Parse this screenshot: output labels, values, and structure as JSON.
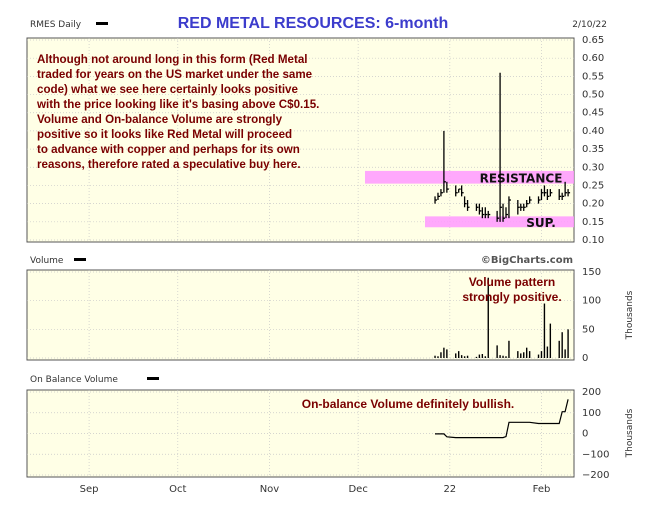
{
  "header": {
    "ticker_label": "RMES Daily",
    "title": "RED METAL RESOURCES: 6-month",
    "date": "2/10/22"
  },
  "colors": {
    "title": "#3c3ccc",
    "panel_bg": "#ffffe6",
    "band": "#ff99ff",
    "annotation": "#7a0000",
    "price_line": "#000000"
  },
  "chart_data": [
    {
      "type": "line",
      "name": "price-panel",
      "x": [
        "2021-12-27",
        "2021-12-28",
        "2021-12-29",
        "2021-12-30",
        "2021-12-31",
        "2022-01-03",
        "2022-01-04",
        "2022-01-05",
        "2022-01-06",
        "2022-01-07",
        "2022-01-10",
        "2022-01-11",
        "2022-01-12",
        "2022-01-13",
        "2022-01-14",
        "2022-01-17",
        "2022-01-18",
        "2022-01-19",
        "2022-01-20",
        "2022-01-21",
        "2022-01-24",
        "2022-01-25",
        "2022-01-26",
        "2022-01-27",
        "2022-01-28",
        "2022-01-31",
        "2022-02-01",
        "2022-02-02",
        "2022-02-03",
        "2022-02-04",
        "2022-02-07",
        "2022-02-08",
        "2022-02-09",
        "2022-02-10"
      ],
      "high": [
        0.22,
        0.23,
        0.24,
        0.4,
        0.26,
        0.25,
        0.24,
        0.25,
        0.22,
        0.21,
        0.2,
        0.2,
        0.19,
        0.19,
        0.18,
        0.18,
        0.56,
        0.2,
        0.19,
        0.22,
        0.21,
        0.2,
        0.2,
        0.21,
        0.22,
        0.22,
        0.24,
        0.25,
        0.24,
        0.24,
        0.24,
        0.23,
        0.26,
        0.24
      ],
      "low": [
        0.2,
        0.21,
        0.22,
        0.23,
        0.23,
        0.22,
        0.23,
        0.22,
        0.19,
        0.18,
        0.18,
        0.17,
        0.16,
        0.16,
        0.16,
        0.15,
        0.15,
        0.15,
        0.16,
        0.16,
        0.17,
        0.18,
        0.18,
        0.19,
        0.2,
        0.2,
        0.21,
        0.22,
        0.21,
        0.22,
        0.21,
        0.21,
        0.22,
        0.22
      ],
      "close": [
        0.21,
        0.22,
        0.23,
        0.26,
        0.24,
        0.23,
        0.24,
        0.23,
        0.2,
        0.19,
        0.19,
        0.18,
        0.17,
        0.17,
        0.17,
        0.16,
        0.19,
        0.16,
        0.17,
        0.21,
        0.19,
        0.19,
        0.19,
        0.2,
        0.21,
        0.21,
        0.23,
        0.23,
        0.22,
        0.23,
        0.22,
        0.22,
        0.23,
        0.23
      ],
      "ylim": [
        0.1,
        0.65
      ],
      "yticks": [
        "0.65",
        "0.60",
        "0.55",
        "0.50",
        "0.45",
        "0.40",
        "0.35",
        "0.30",
        "0.25",
        "0.20",
        "0.15",
        "0.10"
      ],
      "xticks": [
        "Sep",
        "Oct",
        "Nov",
        "Dec",
        "22",
        "Feb"
      ],
      "bands": [
        {
          "label": "RESISTANCE",
          "from": 0.255,
          "to": 0.29
        },
        {
          "label": "SUP.",
          "from": 0.135,
          "to": 0.165
        }
      ],
      "annotation": [
        "Although not around long in this form (Red Metal",
        "traded for years on the US market under the same",
        "code) what we see here certainly looks positive",
        "with the price looking like it's basing above C$0.15.",
        "Volume and On-balance Volume are strongly",
        "positive so it looks like Red Metal will proceed",
        "to advance with copper and perhaps for its own",
        "reasons, therefore rated a speculative buy here."
      ],
      "grid": true
    },
    {
      "type": "bar",
      "name": "volume-panel",
      "title": "Volume",
      "credit": "©BigCharts.com",
      "x": [
        "2021-12-27",
        "2021-12-28",
        "2021-12-29",
        "2021-12-30",
        "2021-12-31",
        "2022-01-03",
        "2022-01-04",
        "2022-01-05",
        "2022-01-06",
        "2022-01-07",
        "2022-01-10",
        "2022-01-11",
        "2022-01-12",
        "2022-01-13",
        "2022-01-14",
        "2022-01-17",
        "2022-01-18",
        "2022-01-19",
        "2022-01-20",
        "2022-01-21",
        "2022-01-24",
        "2022-01-25",
        "2022-01-26",
        "2022-01-27",
        "2022-01-28",
        "2022-01-31",
        "2022-02-01",
        "2022-02-02",
        "2022-02-03",
        "2022-02-04",
        "2022-02-07",
        "2022-02-08",
        "2022-02-09",
        "2022-02-10"
      ],
      "values": [
        4,
        3,
        10,
        18,
        15,
        8,
        12,
        5,
        3,
        4,
        2,
        6,
        7,
        3,
        140,
        22,
        5,
        4,
        3,
        30,
        12,
        8,
        10,
        18,
        12,
        6,
        12,
        95,
        20,
        60,
        30,
        45,
        15,
        50
      ],
      "ylim": [
        0,
        150
      ],
      "yticks": [
        "150",
        "100",
        "50",
        "0"
      ],
      "ylabel": "Thousands",
      "annotation": [
        "Volume pattern",
        "strongly positive."
      ],
      "grid": true
    },
    {
      "type": "line",
      "name": "obv-panel",
      "title": "On Balance Volume",
      "x": [
        "2021-12-27",
        "2021-12-28",
        "2021-12-29",
        "2021-12-30",
        "2021-12-31",
        "2022-01-03",
        "2022-01-04",
        "2022-01-05",
        "2022-01-06",
        "2022-01-07",
        "2022-01-10",
        "2022-01-11",
        "2022-01-12",
        "2022-01-13",
        "2022-01-14",
        "2022-01-17",
        "2022-01-18",
        "2022-01-19",
        "2022-01-20",
        "2022-01-21",
        "2022-01-24",
        "2022-01-25",
        "2022-01-26",
        "2022-01-27",
        "2022-01-28",
        "2022-01-31",
        "2022-02-01",
        "2022-02-02",
        "2022-02-03",
        "2022-02-04",
        "2022-02-07",
        "2022-02-08",
        "2022-02-09",
        "2022-02-10"
      ],
      "values": [
        -2,
        -2,
        -2,
        -2,
        -16,
        -20,
        -20,
        -20,
        -20,
        -20,
        -20,
        -20,
        -20,
        -20,
        -20,
        -20,
        -20,
        -20,
        -15,
        54,
        54,
        54,
        54,
        54,
        54,
        48,
        48,
        48,
        48,
        48,
        48,
        105,
        105,
        165
      ],
      "ylim": [
        -200,
        200
      ],
      "yticks": [
        "200",
        "100",
        "0",
        "−100",
        "−200"
      ],
      "ylabel": "Thousands",
      "annotation": [
        "On-balance Volume definitely bullish."
      ],
      "grid": true
    }
  ]
}
